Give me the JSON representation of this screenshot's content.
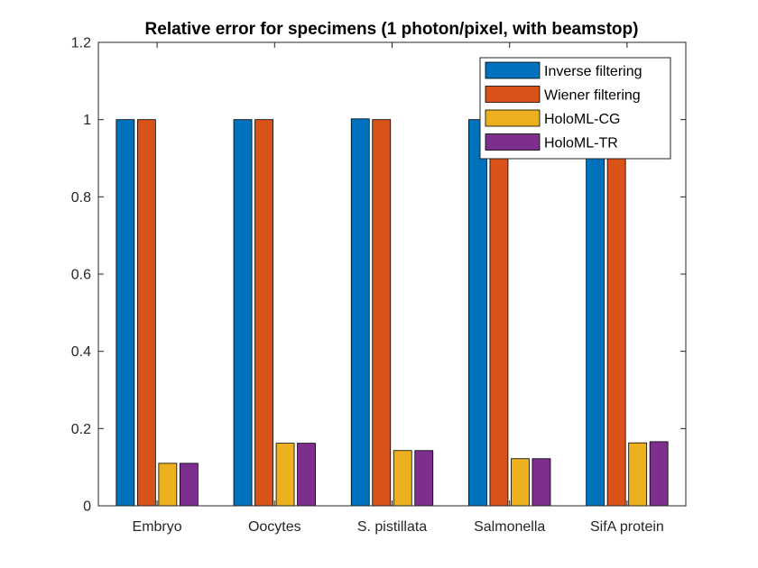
{
  "chart_data": {
    "type": "bar",
    "title": "Relative error for specimens (1 photon/pixel, with beamstop)",
    "xlabel": "",
    "ylabel": "",
    "categories": [
      "Embryo",
      "Oocytes",
      "S. pistillata",
      "Salmonella",
      "SifA protein"
    ],
    "ylim": [
      0,
      1.2
    ],
    "yticks": [
      0,
      0.2,
      0.4,
      0.6,
      0.8,
      1,
      1.2
    ],
    "ytick_labels": [
      "0",
      "0.2",
      "0.4",
      "0.6",
      "0.8",
      "1",
      "1.2"
    ],
    "grid": false,
    "legend_position": "top-right",
    "series": [
      {
        "name": "Inverse filtering",
        "color": "#0072BD",
        "values": [
          1.0,
          1.0,
          1.002,
          1.0,
          1.0
        ]
      },
      {
        "name": "Wiener filtering",
        "color": "#D95319",
        "values": [
          1.0,
          1.0,
          1.0,
          1.0,
          1.0
        ]
      },
      {
        "name": "HoloML-CG",
        "color": "#EDB120",
        "values": [
          0.11,
          0.162,
          0.143,
          0.122,
          0.163
        ]
      },
      {
        "name": "HoloML-TR",
        "color": "#7E2F8E",
        "values": [
          0.11,
          0.162,
          0.143,
          0.122,
          0.166
        ]
      }
    ]
  }
}
